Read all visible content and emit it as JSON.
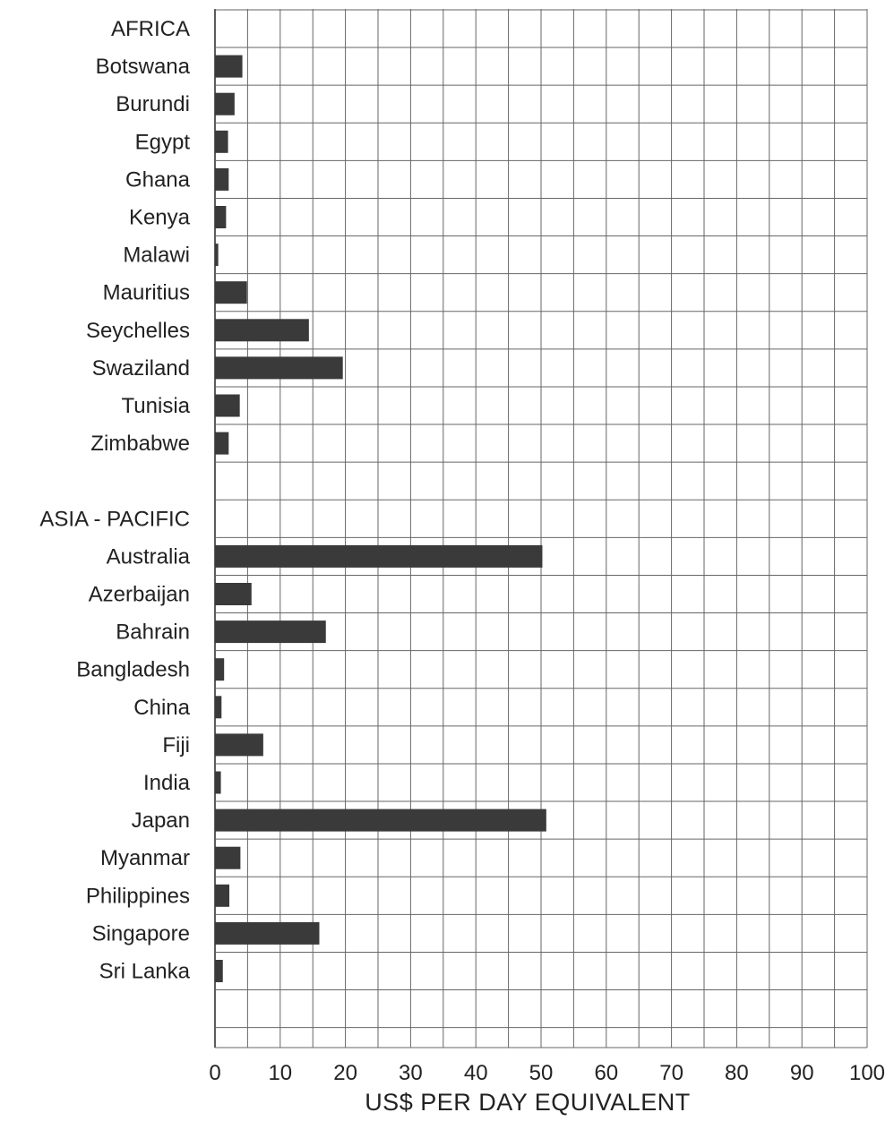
{
  "chart_data": {
    "type": "bar",
    "orientation": "horizontal",
    "xlabel": "US$ PER DAY EQUIVALENT",
    "xlim": [
      0,
      100
    ],
    "xticks": [
      0,
      10,
      20,
      30,
      40,
      50,
      60,
      70,
      80,
      90,
      100
    ],
    "grid": true,
    "colors": {
      "bar": "#3a3a3a",
      "grid": "#666666"
    },
    "groups": [
      {
        "name": "AFRICA",
        "categories": [
          "Botswana",
          "Burundi",
          "Egypt",
          "Ghana",
          "Kenya",
          "Malawi",
          "Mauritius",
          "Seychelles",
          "Swaziland",
          "Tunisia",
          "Zimbabwe"
        ],
        "values": [
          4.2,
          3.0,
          2.0,
          2.1,
          1.7,
          0.5,
          4.9,
          14.4,
          19.6,
          3.8,
          2.1
        ]
      },
      {
        "name": "ASIA - PACIFIC",
        "categories": [
          "Australia",
          "Azerbaijan",
          "Bahrain",
          "Bangladesh",
          "China",
          "Fiji",
          "India",
          "Japan",
          "Myanmar",
          "Philippines",
          "Singapore",
          "Sri Lanka"
        ],
        "values": [
          50.2,
          5.6,
          17.0,
          1.4,
          1.0,
          7.4,
          0.9,
          50.8,
          3.9,
          2.2,
          16.0,
          1.2
        ]
      }
    ]
  }
}
